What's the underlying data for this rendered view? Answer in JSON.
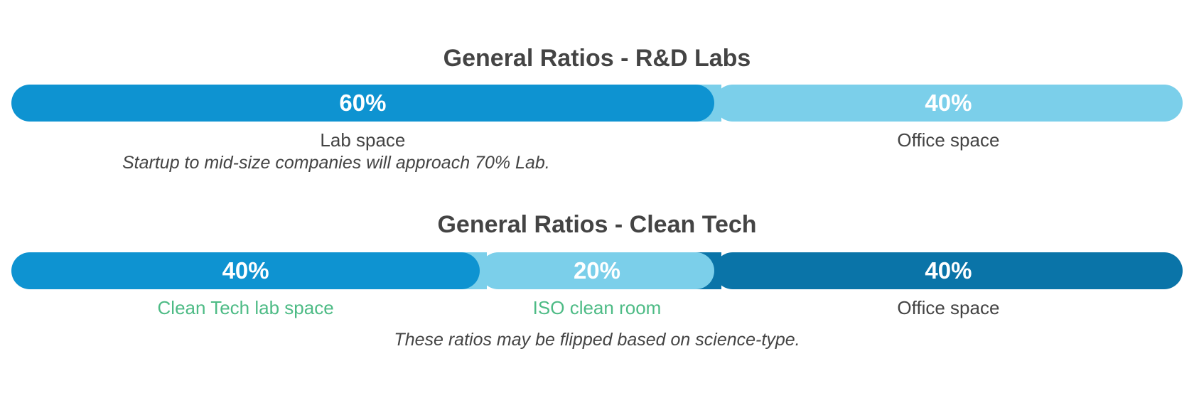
{
  "chart_data": [
    {
      "type": "bar",
      "title": "General Ratios - R&D Labs",
      "unit": "%",
      "segments": [
        {
          "label": "Lab space",
          "value": 60,
          "display": "60%",
          "color": "#0e93d1",
          "label_color": "#444444"
        },
        {
          "label": "Office space",
          "value": 40,
          "display": "40%",
          "color": "#7bcfea",
          "label_color": "#444444"
        }
      ],
      "note": "Startup to mid-size companies will approach 70% Lab."
    },
    {
      "type": "bar",
      "title": "General Ratios - Clean Tech",
      "unit": "%",
      "segments": [
        {
          "label": "Clean Tech lab space",
          "value": 40,
          "display": "40%",
          "color": "#0e93d1",
          "label_color": "#4dbb85"
        },
        {
          "label": "ISO clean room",
          "value": 20,
          "display": "20%",
          "color": "#7bcfea",
          "label_color": "#4dbb85"
        },
        {
          "label": "Office space",
          "value": 40,
          "display": "40%",
          "color": "#0a74a8",
          "label_color": "#444444"
        }
      ],
      "note": "These ratios may be flipped based on science-type."
    }
  ]
}
